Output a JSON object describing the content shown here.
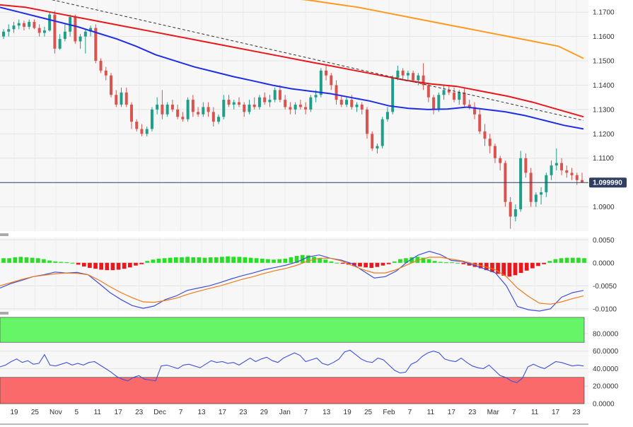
{
  "colors": {
    "up_candle": "#1f9e89",
    "down_candle": "#d9534f",
    "sma_fast": "#1f2ee6",
    "sma_mid": "#e8181c",
    "sma_slow": "#ff9a1f",
    "trendline": "#333333",
    "macd_line": "#3f51d8",
    "signal_line": "#f07b1c",
    "hist_pos": "#23e021",
    "hist_neg": "#e8181c",
    "rsi_line": "#3f51d8",
    "overbought_zone": "#66f566",
    "oversold_zone": "#fa6a6a",
    "current_price_bg": "#2f3e62"
  },
  "current_price_label": "1.099990",
  "chart_data": [
    {
      "type": "candlestick",
      "panel": "price",
      "y_ticks": [
        "1.1700",
        "1.1600",
        "1.1500",
        "1.1400",
        "1.1300",
        "1.1200",
        "1.1100",
        "1.0900"
      ],
      "ylim": [
        1.08,
        1.175
      ],
      "current_price": 1.09999,
      "ohlc": [
        [
          1.16,
          1.163,
          1.159,
          1.162
        ],
        [
          1.162,
          1.165,
          1.16,
          1.163
        ],
        [
          1.163,
          1.166,
          1.1615,
          1.1645
        ],
        [
          1.1645,
          1.167,
          1.163,
          1.1655
        ],
        [
          1.1655,
          1.1665,
          1.1625,
          1.164
        ],
        [
          1.164,
          1.167,
          1.163,
          1.166
        ],
        [
          1.166,
          1.167,
          1.163,
          1.1635
        ],
        [
          1.1635,
          1.165,
          1.16,
          1.1615
        ],
        [
          1.1615,
          1.164,
          1.16,
          1.1625
        ],
        [
          1.1625,
          1.17,
          1.162,
          1.169
        ],
        [
          1.169,
          1.1705,
          1.153,
          1.155
        ],
        [
          1.155,
          1.161,
          1.1545,
          1.159
        ],
        [
          1.159,
          1.165,
          1.158,
          1.162
        ],
        [
          1.162,
          1.169,
          1.16,
          1.168
        ],
        [
          1.168,
          1.169,
          1.157,
          1.158
        ],
        [
          1.158,
          1.161,
          1.155,
          1.16
        ],
        [
          1.16,
          1.163,
          1.153,
          1.162
        ],
        [
          1.162,
          1.1645,
          1.16,
          1.1635
        ],
        [
          1.1635,
          1.165,
          1.149,
          1.15
        ],
        [
          1.15,
          1.151,
          1.145,
          1.146
        ],
        [
          1.146,
          1.1475,
          1.142,
          1.144
        ],
        [
          1.144,
          1.145,
          1.135,
          1.136
        ],
        [
          1.136,
          1.138,
          1.131,
          1.132
        ],
        [
          1.132,
          1.139,
          1.131,
          1.137
        ],
        [
          1.137,
          1.139,
          1.131,
          1.132
        ],
        [
          1.132,
          1.133,
          1.122,
          1.125
        ],
        [
          1.125,
          1.126,
          1.121,
          1.122
        ],
        [
          1.122,
          1.124,
          1.119,
          1.12
        ],
        [
          1.12,
          1.123,
          1.119,
          1.122
        ],
        [
          1.122,
          1.131,
          1.121,
          1.13
        ],
        [
          1.13,
          1.135,
          1.128,
          1.132
        ],
        [
          1.132,
          1.138,
          1.126,
          1.128
        ],
        [
          1.128,
          1.133,
          1.127,
          1.132
        ],
        [
          1.132,
          1.134,
          1.129,
          1.13
        ],
        [
          1.13,
          1.132,
          1.126,
          1.127
        ],
        [
          1.127,
          1.129,
          1.125,
          1.126
        ],
        [
          1.126,
          1.135,
          1.125,
          1.134
        ],
        [
          1.134,
          1.136,
          1.127,
          1.129
        ],
        [
          1.129,
          1.131,
          1.127,
          1.128
        ],
        [
          1.128,
          1.133,
          1.127,
          1.131
        ],
        [
          1.131,
          1.133,
          1.127,
          1.129
        ],
        [
          1.129,
          1.131,
          1.123,
          1.125
        ],
        [
          1.125,
          1.128,
          1.124,
          1.127
        ],
        [
          1.127,
          1.136,
          1.126,
          1.134
        ],
        [
          1.134,
          1.136,
          1.131,
          1.132
        ],
        [
          1.132,
          1.134,
          1.13,
          1.133
        ],
        [
          1.133,
          1.135,
          1.131,
          1.132
        ],
        [
          1.132,
          1.133,
          1.127,
          1.129
        ],
        [
          1.129,
          1.134,
          1.128,
          1.132
        ],
        [
          1.132,
          1.135,
          1.13,
          1.131
        ],
        [
          1.131,
          1.136,
          1.13,
          1.135
        ],
        [
          1.135,
          1.137,
          1.132,
          1.133
        ],
        [
          1.133,
          1.136,
          1.131,
          1.134
        ],
        [
          1.134,
          1.139,
          1.133,
          1.138
        ],
        [
          1.138,
          1.14,
          1.133,
          1.134
        ],
        [
          1.134,
          1.136,
          1.13,
          1.131
        ],
        [
          1.131,
          1.133,
          1.128,
          1.13
        ],
        [
          1.13,
          1.133,
          1.128,
          1.132
        ],
        [
          1.132,
          1.134,
          1.13,
          1.131
        ],
        [
          1.131,
          1.133,
          1.128,
          1.13
        ],
        [
          1.13,
          1.136,
          1.129,
          1.135
        ],
        [
          1.135,
          1.138,
          1.133,
          1.136
        ],
        [
          1.136,
          1.147,
          1.135,
          1.146
        ],
        [
          1.146,
          1.148,
          1.142,
          1.144
        ],
        [
          1.144,
          1.145,
          1.138,
          1.14
        ],
        [
          1.14,
          1.142,
          1.132,
          1.134
        ],
        [
          1.134,
          1.136,
          1.131,
          1.132
        ],
        [
          1.132,
          1.135,
          1.131,
          1.134
        ],
        [
          1.134,
          1.136,
          1.13,
          1.131
        ],
        [
          1.131,
          1.133,
          1.129,
          1.132
        ],
        [
          1.132,
          1.133,
          1.128,
          1.13
        ],
        [
          1.13,
          1.131,
          1.118,
          1.12
        ],
        [
          1.12,
          1.121,
          1.113,
          1.114
        ],
        [
          1.114,
          1.116,
          1.112,
          1.115
        ],
        [
          1.115,
          1.127,
          1.114,
          1.126
        ],
        [
          1.126,
          1.131,
          1.125,
          1.129
        ],
        [
          1.129,
          1.144,
          1.128,
          1.143
        ],
        [
          1.143,
          1.148,
          1.142,
          1.146
        ],
        [
          1.146,
          1.147,
          1.142,
          1.144
        ],
        [
          1.144,
          1.146,
          1.142,
          1.145
        ],
        [
          1.145,
          1.146,
          1.141,
          1.142
        ],
        [
          1.142,
          1.145,
          1.14,
          1.144
        ],
        [
          1.144,
          1.149,
          1.138,
          1.14
        ],
        [
          1.14,
          1.141,
          1.133,
          1.135
        ],
        [
          1.135,
          1.136,
          1.128,
          1.13
        ],
        [
          1.13,
          1.137,
          1.129,
          1.136
        ],
        [
          1.136,
          1.14,
          1.134,
          1.138
        ],
        [
          1.138,
          1.14,
          1.136,
          1.137
        ],
        [
          1.137,
          1.139,
          1.133,
          1.134
        ],
        [
          1.134,
          1.138,
          1.132,
          1.137
        ],
        [
          1.137,
          1.139,
          1.131,
          1.132
        ],
        [
          1.132,
          1.134,
          1.13,
          1.131
        ],
        [
          1.131,
          1.133,
          1.126,
          1.128
        ],
        [
          1.128,
          1.13,
          1.12,
          1.121
        ],
        [
          1.121,
          1.124,
          1.115,
          1.118
        ],
        [
          1.118,
          1.12,
          1.112,
          1.115
        ],
        [
          1.115,
          1.116,
          1.108,
          1.11
        ],
        [
          1.11,
          1.111,
          1.105,
          1.108
        ],
        [
          1.108,
          1.109,
          1.09,
          1.092
        ],
        [
          1.092,
          1.094,
          1.081,
          1.086
        ],
        [
          1.086,
          1.091,
          1.084,
          1.089
        ],
        [
          1.089,
          1.113,
          1.088,
          1.11
        ],
        [
          1.11,
          1.112,
          1.102,
          1.104
        ],
        [
          1.104,
          1.106,
          1.09,
          1.092
        ],
        [
          1.092,
          1.096,
          1.09,
          1.095
        ],
        [
          1.095,
          1.098,
          1.091,
          1.096
        ],
        [
          1.096,
          1.104,
          1.094,
          1.103
        ],
        [
          1.103,
          1.109,
          1.101,
          1.107
        ],
        [
          1.107,
          1.114,
          1.105,
          1.108
        ],
        [
          1.108,
          1.11,
          1.103,
          1.105
        ],
        [
          1.105,
          1.107,
          1.102,
          1.104
        ],
        [
          1.104,
          1.106,
          1.101,
          1.103
        ],
        [
          1.103,
          1.104,
          1.099,
          1.101
        ],
        [
          1.101,
          1.104,
          1.1,
          1.1
        ]
      ],
      "series": [
        {
          "name": "",
          "role": "sma_fast",
          "values": [
            1.172,
            1.17,
            1.168,
            1.166,
            1.164,
            1.1615,
            1.159,
            1.156,
            1.1525,
            1.15,
            1.1475,
            1.1455,
            1.1435,
            1.1418,
            1.14,
            1.1385,
            1.1375,
            1.1365,
            1.135,
            1.1335,
            1.1315,
            1.1305,
            1.13,
            1.1302,
            1.131,
            1.13,
            1.129,
            1.1275,
            1.1255,
            1.1235,
            1.122
          ]
        },
        {
          "name": "",
          "role": "sma_mid",
          "values": [
            1.173,
            1.172,
            1.17,
            1.168,
            1.166,
            1.164,
            1.162,
            1.16,
            1.158,
            1.156,
            1.154,
            1.152,
            1.15,
            1.148,
            1.146,
            1.144,
            1.142,
            1.1405,
            1.1395,
            1.1375,
            1.1355,
            1.133,
            1.13,
            1.127
          ]
        },
        {
          "name": "",
          "role": "sma_slow",
          "values": [
            1.176,
            1.175,
            1.1735,
            1.172,
            1.17,
            1.168,
            1.166,
            1.164,
            1.162,
            1.16,
            1.158,
            1.156,
            1.151
          ]
        },
        {
          "name": "",
          "role": "trendline",
          "values": [
            1.176,
            1.1255
          ]
        }
      ]
    },
    {
      "type": "macd",
      "panel": "macd",
      "y_ticks": [
        "0.0050",
        "0.0000",
        "-0.0050",
        "-0.0100"
      ],
      "ylim": [
        -0.0105,
        0.0055
      ],
      "histogram": [
        0.001,
        0.001,
        0.0012,
        0.0013,
        0.0012,
        0.0011,
        0.001,
        0.0008,
        0.0005,
        0.0003,
        0.0002,
        0.0001,
        0.0,
        -0.0004,
        -0.0008,
        -0.0011,
        -0.0013,
        -0.0015,
        -0.0016,
        -0.0016,
        -0.0015,
        -0.0013,
        -0.001,
        -0.0006,
        -0.0003,
        0.0004,
        0.0007,
        0.0009,
        0.001,
        0.0011,
        0.0012,
        0.0012,
        0.0013,
        0.0012,
        0.0012,
        0.0011,
        0.0012,
        0.0012,
        0.0013,
        0.0014,
        0.0013,
        0.0013,
        0.0012,
        0.0011,
        0.001,
        0.0009,
        0.0008,
        0.0007,
        0.0008,
        0.0009,
        0.0012,
        0.0015,
        0.0017,
        0.0016,
        0.0013,
        0.001,
        0.0007,
        0.0003,
        0.0,
        -0.0002,
        -0.0004,
        -0.0006,
        -0.0008,
        -0.001,
        -0.0011,
        -0.0009,
        -0.0006,
        -0.0003,
        0.0003,
        0.0008,
        0.001,
        0.0012,
        0.0013,
        0.0011,
        0.0008,
        0.0004,
        0.0002,
        0.0001,
        0.0001,
        0.0,
        -0.0003,
        -0.0006,
        -0.0009,
        -0.0012,
        -0.0016,
        -0.002,
        -0.0024,
        -0.0028,
        -0.003,
        -0.0027,
        -0.0022,
        -0.0017,
        -0.0012,
        -0.0007,
        -0.0003,
        0.0004,
        0.0008,
        0.001,
        0.0011,
        0.0011,
        0.0011,
        0.001
      ],
      "series": [
        {
          "name": "",
          "role": "macd_line",
          "values": [
            -0.0055,
            -0.0045,
            -0.0038,
            -0.003,
            -0.0026,
            -0.002,
            -0.0022,
            -0.0021,
            -0.0026,
            -0.0045,
            -0.0065,
            -0.008,
            -0.0093,
            -0.0099,
            -0.0094,
            -0.008,
            -0.0072,
            -0.006,
            -0.0055,
            -0.005,
            -0.0043,
            -0.0035,
            -0.0028,
            -0.0022,
            -0.0015,
            -0.001,
            -0.0005,
            0.0002,
            0.0013,
            0.0017,
            0.001,
            0.0006,
            -0.0002,
            -0.0018,
            -0.0033,
            -0.003,
            -0.0018,
            0.0002,
            0.0017,
            0.0025,
            0.0018,
            0.0005,
            0.0003,
            -0.0005,
            -0.0013,
            -0.0022,
            -0.005,
            -0.0095,
            -0.0102,
            -0.0105,
            -0.01,
            -0.0075,
            -0.0065,
            -0.006
          ]
        },
        {
          "name": "",
          "role": "signal_line",
          "values": [
            -0.005,
            -0.0043,
            -0.0036,
            -0.003,
            -0.0027,
            -0.0024,
            -0.0022,
            -0.0023,
            -0.0026,
            -0.0038,
            -0.0052,
            -0.0065,
            -0.0076,
            -0.0085,
            -0.0086,
            -0.0082,
            -0.0077,
            -0.0069,
            -0.0062,
            -0.0056,
            -0.005,
            -0.0043,
            -0.0036,
            -0.003,
            -0.0023,
            -0.0017,
            -0.0012,
            -0.0005,
            0.0004,
            0.001,
            0.001,
            0.0004,
            -0.0006,
            -0.0015,
            -0.0022,
            -0.0022,
            -0.0015,
            -0.0004,
            0.0006,
            0.0012,
            0.0012,
            0.0008,
            0.0004,
            -0.0002,
            -0.0008,
            -0.0015,
            -0.003,
            -0.0055,
            -0.0073,
            -0.0088,
            -0.009,
            -0.0085,
            -0.0078,
            -0.0072
          ]
        }
      ]
    },
    {
      "type": "rsi",
      "panel": "rsi",
      "y_ticks": [
        "80.0000",
        "60.0000",
        "40.0000",
        "20.0000",
        "0.0000"
      ],
      "ylim": [
        0,
        100
      ],
      "overbought": 70,
      "oversold": 30,
      "series": [
        {
          "name": "",
          "role": "rsi_line",
          "values": [
            42,
            44,
            48,
            51,
            47,
            49,
            45,
            46,
            56,
            44,
            43,
            45,
            47,
            44,
            46,
            44,
            47,
            48,
            44,
            40,
            36,
            31,
            28,
            26,
            30,
            32,
            28,
            27,
            26,
            43,
            44,
            42,
            40,
            44,
            45,
            43,
            41,
            45,
            49,
            47,
            48,
            46,
            47,
            44,
            48,
            52,
            48,
            51,
            53,
            49,
            47,
            52,
            55,
            58,
            55,
            48,
            50,
            52,
            46,
            44,
            47,
            51,
            59,
            61,
            56,
            51,
            48,
            47,
            52,
            50,
            44,
            38,
            35,
            36,
            45,
            48,
            54,
            58,
            60,
            58,
            51,
            49,
            48,
            52,
            47,
            43,
            41,
            40,
            44,
            38,
            32,
            30,
            26,
            24,
            29,
            42,
            45,
            42,
            40,
            44,
            48,
            47,
            45,
            43,
            44,
            43
          ]
        }
      ]
    }
  ],
  "axis": {
    "x_labels": [
      "19",
      "25",
      "Nov",
      "5",
      "11",
      "17",
      "23",
      "Dec",
      "7",
      "13",
      "17",
      "23",
      "29",
      "Jan",
      "7",
      "13",
      "19",
      "25",
      "Feb",
      "7",
      "11",
      "17",
      "23",
      "Mar",
      "7",
      "11",
      "17",
      "23"
    ]
  }
}
